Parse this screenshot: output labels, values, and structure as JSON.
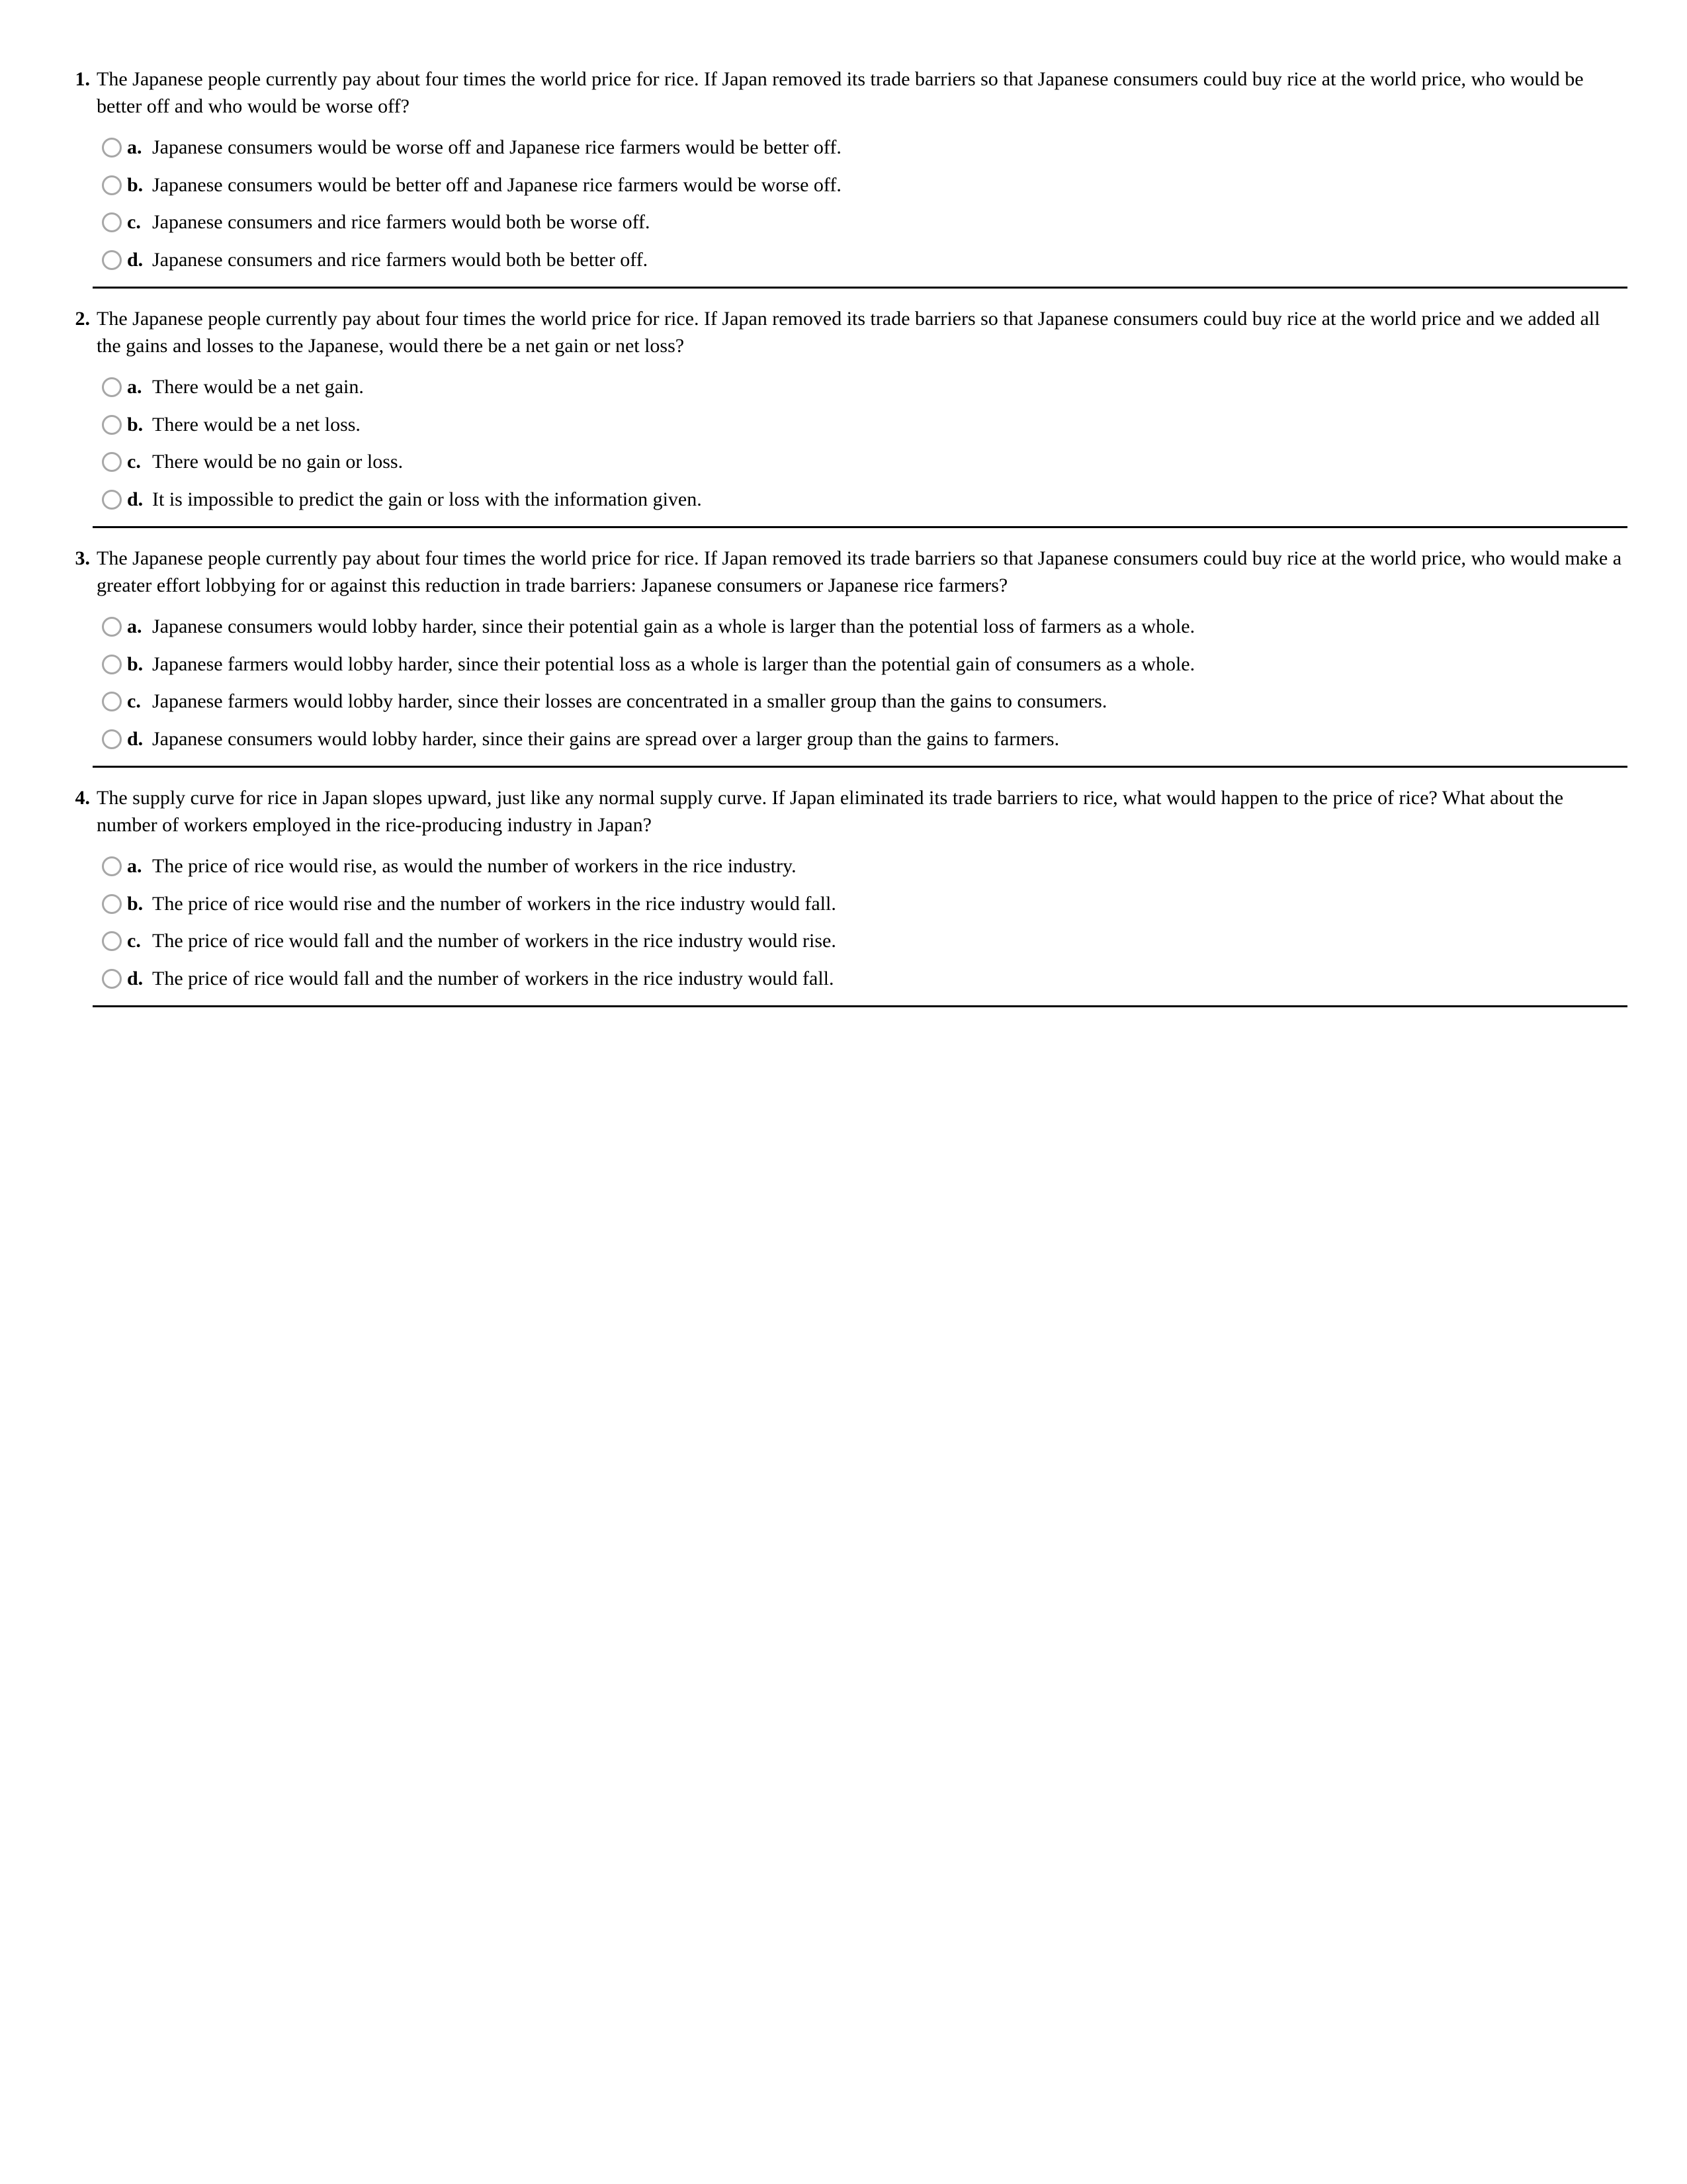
{
  "questions": [
    {
      "number": "1.",
      "stem": "The Japanese people currently pay about four times the world price for rice. If Japan removed its trade barriers so that Japanese consumers could buy rice at the world price, who would be better off and who would be worse off?",
      "options": [
        {
          "letter": "a.",
          "text": "Japanese consumers would be worse off and Japanese rice farmers would be better off."
        },
        {
          "letter": "b.",
          "text": "Japanese consumers would be better off and Japanese rice farmers would be worse off."
        },
        {
          "letter": "c.",
          "text": "Japanese consumers and rice farmers would both be worse off."
        },
        {
          "letter": "d.",
          "text": "Japanese consumers and rice farmers would both be better off."
        }
      ]
    },
    {
      "number": "2.",
      "stem": "The Japanese people currently pay about four times the world price for rice. If Japan removed its trade barriers so that Japanese consumers could buy rice at the world price and we added all the gains and losses to the Japanese, would there be a net gain or net loss?",
      "options": [
        {
          "letter": "a.",
          "text": "There would be a net gain."
        },
        {
          "letter": "b.",
          "text": "There would be a net loss."
        },
        {
          "letter": "c.",
          "text": "There would be no gain or loss."
        },
        {
          "letter": "d.",
          "text": "It is impossible to predict the gain or loss with the information given."
        }
      ]
    },
    {
      "number": "3.",
      "stem": "The Japanese people currently pay about four times the world price for rice. If Japan removed its trade barriers so that Japanese consumers could buy rice at the world price, who would make a greater effort lobbying for or against this reduction in trade barriers: Japanese consumers or Japanese rice farmers?",
      "options": [
        {
          "letter": "a.",
          "text": "Japanese consumers would lobby harder, since their potential gain as a whole is larger than the potential loss of farmers as a whole."
        },
        {
          "letter": "b.",
          "text": "Japanese farmers would lobby harder, since their potential loss as a whole is larger than the potential gain of consumers as a whole."
        },
        {
          "letter": "c.",
          "text": "Japanese farmers would lobby harder, since their losses are concentrated in a smaller group than the gains to consumers."
        },
        {
          "letter": "d.",
          "text": "Japanese consumers would lobby harder, since their gains are spread over a larger group than the gains to farmers."
        }
      ]
    },
    {
      "number": "4.",
      "stem": "The supply curve for rice in Japan slopes upward, just like any normal supply curve. If Japan eliminated its trade barriers to rice, what would happen to the price of rice? What about the number of workers employed in the rice-producing industry in Japan?",
      "options": [
        {
          "letter": "a.",
          "text": "The price of rice would rise, as would the number of workers in the rice industry."
        },
        {
          "letter": "b.",
          "text": "The price of rice would rise and the number of workers in the rice industry would fall."
        },
        {
          "letter": "c.",
          "text": "The price of rice would fall and the number of workers in the rice industry would rise."
        },
        {
          "letter": "d.",
          "text": "The price of rice would fall and the number of workers in the rice industry would fall."
        }
      ]
    }
  ]
}
